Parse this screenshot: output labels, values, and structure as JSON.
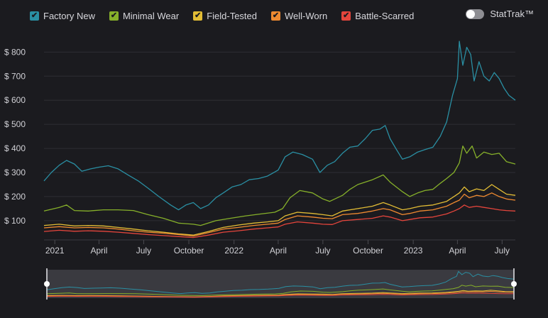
{
  "legend": {
    "items": [
      {
        "label": "Factory New",
        "color": "#2a8fa3"
      },
      {
        "label": "Minimal Wear",
        "color": "#86b02a"
      },
      {
        "label": "Field-Tested",
        "color": "#e3bd35"
      },
      {
        "label": "Well-Worn",
        "color": "#ef8a30"
      },
      {
        "label": "Battle-Scarred",
        "color": "#e5453c"
      }
    ]
  },
  "stattrak": {
    "label": "StatTrak™",
    "enabled": false
  },
  "chart_data": {
    "type": "line",
    "ylabel_prefix": "$",
    "ylim": [
      20,
      860
    ],
    "yticks": [
      100,
      200,
      300,
      400,
      500,
      600,
      700,
      800
    ],
    "ytick_labels": [
      "$ 100",
      "$ 200",
      "$ 300",
      "$ 400",
      "$ 500",
      "$ 600",
      "$ 700",
      "$ 800"
    ],
    "xlim": [
      "2020-12-10",
      "2023-07-28"
    ],
    "xticks": [
      {
        "label": "2021",
        "date": "2021-01-01"
      },
      {
        "label": "April",
        "date": "2021-04-01"
      },
      {
        "label": "July",
        "date": "2021-07-01"
      },
      {
        "label": "October",
        "date": "2021-10-01"
      },
      {
        "label": "2022",
        "date": "2022-01-01"
      },
      {
        "label": "April",
        "date": "2022-04-01"
      },
      {
        "label": "July",
        "date": "2022-07-01"
      },
      {
        "label": "October",
        "date": "2022-10-01"
      },
      {
        "label": "2023",
        "date": "2023-01-01"
      },
      {
        "label": "April",
        "date": "2023-04-01"
      },
      {
        "label": "July",
        "date": "2023-07-01"
      }
    ],
    "grid": true,
    "legend_position": "top-left",
    "series": [
      {
        "name": "Factory New",
        "color": "#2a8fa3",
        "points": [
          [
            "2020-12-10",
            265
          ],
          [
            "2020-12-25",
            300
          ],
          [
            "2021-01-10",
            330
          ],
          [
            "2021-01-25",
            350
          ],
          [
            "2021-02-10",
            335
          ],
          [
            "2021-02-25",
            305
          ],
          [
            "2021-03-15",
            315
          ],
          [
            "2021-04-01",
            322
          ],
          [
            "2021-04-20",
            328
          ],
          [
            "2021-05-10",
            315
          ],
          [
            "2021-05-30",
            290
          ],
          [
            "2021-06-20",
            265
          ],
          [
            "2021-07-10",
            235
          ],
          [
            "2021-08-01",
            200
          ],
          [
            "2021-08-25",
            165
          ],
          [
            "2021-09-10",
            145
          ],
          [
            "2021-09-25",
            165
          ],
          [
            "2021-10-10",
            175
          ],
          [
            "2021-10-25",
            150
          ],
          [
            "2021-11-10",
            165
          ],
          [
            "2021-11-25",
            195
          ],
          [
            "2021-12-10",
            215
          ],
          [
            "2021-12-28",
            240
          ],
          [
            "2022-01-15",
            250
          ],
          [
            "2022-02-01",
            270
          ],
          [
            "2022-02-20",
            275
          ],
          [
            "2022-03-10",
            285
          ],
          [
            "2022-04-01",
            310
          ],
          [
            "2022-04-15",
            365
          ],
          [
            "2022-05-01",
            385
          ],
          [
            "2022-05-20",
            375
          ],
          [
            "2022-06-10",
            355
          ],
          [
            "2022-06-25",
            300
          ],
          [
            "2022-07-10",
            330
          ],
          [
            "2022-07-25",
            345
          ],
          [
            "2022-08-10",
            380
          ],
          [
            "2022-08-25",
            405
          ],
          [
            "2022-09-10",
            410
          ],
          [
            "2022-09-25",
            440
          ],
          [
            "2022-10-10",
            475
          ],
          [
            "2022-10-25",
            480
          ],
          [
            "2022-11-05",
            495
          ],
          [
            "2022-11-15",
            440
          ],
          [
            "2022-11-28",
            395
          ],
          [
            "2022-12-10",
            355
          ],
          [
            "2022-12-25",
            365
          ],
          [
            "2023-01-10",
            385
          ],
          [
            "2023-01-25",
            395
          ],
          [
            "2023-02-10",
            405
          ],
          [
            "2023-02-25",
            450
          ],
          [
            "2023-03-10",
            510
          ],
          [
            "2023-03-22",
            620
          ],
          [
            "2023-04-01",
            690
          ],
          [
            "2023-04-05",
            845
          ],
          [
            "2023-04-12",
            745
          ],
          [
            "2023-04-20",
            820
          ],
          [
            "2023-04-28",
            790
          ],
          [
            "2023-05-05",
            680
          ],
          [
            "2023-05-15",
            760
          ],
          [
            "2023-05-25",
            700
          ],
          [
            "2023-06-05",
            680
          ],
          [
            "2023-06-15",
            715
          ],
          [
            "2023-06-25",
            690
          ],
          [
            "2023-07-05",
            650
          ],
          [
            "2023-07-15",
            620
          ],
          [
            "2023-07-28",
            600
          ]
        ]
      },
      {
        "name": "Minimal Wear",
        "color": "#86b02a",
        "points": [
          [
            "2020-12-10",
            140
          ],
          [
            "2021-01-10",
            155
          ],
          [
            "2021-01-25",
            165
          ],
          [
            "2021-02-10",
            142
          ],
          [
            "2021-03-10",
            140
          ],
          [
            "2021-04-10",
            145
          ],
          [
            "2021-05-10",
            145
          ],
          [
            "2021-06-10",
            142
          ],
          [
            "2021-07-10",
            125
          ],
          [
            "2021-08-10",
            110
          ],
          [
            "2021-09-10",
            90
          ],
          [
            "2021-10-10",
            85
          ],
          [
            "2021-10-25",
            80
          ],
          [
            "2021-11-25",
            100
          ],
          [
            "2021-12-25",
            110
          ],
          [
            "2022-01-25",
            120
          ],
          [
            "2022-02-25",
            128
          ],
          [
            "2022-03-25",
            135
          ],
          [
            "2022-04-10",
            150
          ],
          [
            "2022-04-25",
            195
          ],
          [
            "2022-05-15",
            225
          ],
          [
            "2022-06-10",
            215
          ],
          [
            "2022-07-01",
            190
          ],
          [
            "2022-07-15",
            180
          ],
          [
            "2022-08-10",
            205
          ],
          [
            "2022-08-25",
            230
          ],
          [
            "2022-09-10",
            250
          ],
          [
            "2022-10-10",
            270
          ],
          [
            "2022-11-01",
            290
          ],
          [
            "2022-11-15",
            260
          ],
          [
            "2022-12-10",
            220
          ],
          [
            "2022-12-25",
            200
          ],
          [
            "2023-01-10",
            215
          ],
          [
            "2023-01-25",
            225
          ],
          [
            "2023-02-10",
            230
          ],
          [
            "2023-02-25",
            255
          ],
          [
            "2023-03-10",
            275
          ],
          [
            "2023-03-25",
            300
          ],
          [
            "2023-04-05",
            340
          ],
          [
            "2023-04-12",
            410
          ],
          [
            "2023-04-20",
            380
          ],
          [
            "2023-05-01",
            410
          ],
          [
            "2023-05-10",
            360
          ],
          [
            "2023-05-25",
            385
          ],
          [
            "2023-06-10",
            375
          ],
          [
            "2023-06-25",
            380
          ],
          [
            "2023-07-10",
            345
          ],
          [
            "2023-07-28",
            335
          ]
        ]
      },
      {
        "name": "Field-Tested",
        "color": "#e3bd35",
        "points": [
          [
            "2020-12-10",
            80
          ],
          [
            "2021-01-10",
            85
          ],
          [
            "2021-02-10",
            78
          ],
          [
            "2021-03-10",
            80
          ],
          [
            "2021-04-10",
            78
          ],
          [
            "2021-05-10",
            72
          ],
          [
            "2021-06-10",
            65
          ],
          [
            "2021-07-10",
            58
          ],
          [
            "2021-08-10",
            52
          ],
          [
            "2021-09-10",
            45
          ],
          [
            "2021-10-10",
            40
          ],
          [
            "2021-11-10",
            55
          ],
          [
            "2021-12-10",
            72
          ],
          [
            "2022-01-10",
            82
          ],
          [
            "2022-02-10",
            90
          ],
          [
            "2022-03-10",
            95
          ],
          [
            "2022-04-01",
            100
          ],
          [
            "2022-04-15",
            120
          ],
          [
            "2022-05-10",
            135
          ],
          [
            "2022-06-10",
            130
          ],
          [
            "2022-07-01",
            125
          ],
          [
            "2022-07-20",
            120
          ],
          [
            "2022-08-10",
            140
          ],
          [
            "2022-09-10",
            150
          ],
          [
            "2022-10-10",
            160
          ],
          [
            "2022-11-01",
            175
          ],
          [
            "2022-11-15",
            165
          ],
          [
            "2022-12-10",
            145
          ],
          [
            "2022-12-25",
            150
          ],
          [
            "2023-01-15",
            160
          ],
          [
            "2023-02-10",
            165
          ],
          [
            "2023-03-10",
            180
          ],
          [
            "2023-03-25",
            200
          ],
          [
            "2023-04-05",
            215
          ],
          [
            "2023-04-15",
            240
          ],
          [
            "2023-04-25",
            220
          ],
          [
            "2023-05-10",
            232
          ],
          [
            "2023-05-25",
            225
          ],
          [
            "2023-06-10",
            250
          ],
          [
            "2023-06-25",
            230
          ],
          [
            "2023-07-10",
            210
          ],
          [
            "2023-07-28",
            205
          ]
        ]
      },
      {
        "name": "Well-Worn",
        "color": "#ef8a30",
        "points": [
          [
            "2020-12-10",
            70
          ],
          [
            "2021-01-10",
            75
          ],
          [
            "2021-02-10",
            70
          ],
          [
            "2021-03-10",
            72
          ],
          [
            "2021-04-10",
            70
          ],
          [
            "2021-05-10",
            65
          ],
          [
            "2021-06-10",
            58
          ],
          [
            "2021-07-10",
            52
          ],
          [
            "2021-08-10",
            48
          ],
          [
            "2021-09-10",
            42
          ],
          [
            "2021-10-10",
            36
          ],
          [
            "2021-11-10",
            50
          ],
          [
            "2021-12-10",
            65
          ],
          [
            "2022-01-10",
            72
          ],
          [
            "2022-02-10",
            80
          ],
          [
            "2022-03-10",
            85
          ],
          [
            "2022-04-01",
            90
          ],
          [
            "2022-04-15",
            105
          ],
          [
            "2022-05-10",
            120
          ],
          [
            "2022-06-10",
            115
          ],
          [
            "2022-07-01",
            110
          ],
          [
            "2022-07-20",
            108
          ],
          [
            "2022-08-10",
            125
          ],
          [
            "2022-09-10",
            130
          ],
          [
            "2022-10-10",
            140
          ],
          [
            "2022-11-01",
            150
          ],
          [
            "2022-11-15",
            145
          ],
          [
            "2022-12-10",
            125
          ],
          [
            "2022-12-25",
            130
          ],
          [
            "2023-01-15",
            140
          ],
          [
            "2023-02-10",
            145
          ],
          [
            "2023-03-10",
            160
          ],
          [
            "2023-03-25",
            175
          ],
          [
            "2023-04-05",
            185
          ],
          [
            "2023-04-15",
            210
          ],
          [
            "2023-04-25",
            195
          ],
          [
            "2023-05-10",
            205
          ],
          [
            "2023-05-25",
            200
          ],
          [
            "2023-06-10",
            215
          ],
          [
            "2023-06-25",
            200
          ],
          [
            "2023-07-10",
            190
          ],
          [
            "2023-07-28",
            185
          ]
        ]
      },
      {
        "name": "Battle-Scarred",
        "color": "#e5453c",
        "points": [
          [
            "2020-12-10",
            55
          ],
          [
            "2021-01-10",
            60
          ],
          [
            "2021-02-10",
            56
          ],
          [
            "2021-03-10",
            58
          ],
          [
            "2021-04-10",
            56
          ],
          [
            "2021-05-10",
            52
          ],
          [
            "2021-06-10",
            47
          ],
          [
            "2021-07-10",
            42
          ],
          [
            "2021-08-10",
            38
          ],
          [
            "2021-09-10",
            34
          ],
          [
            "2021-10-10",
            30
          ],
          [
            "2021-11-10",
            40
          ],
          [
            "2021-12-10",
            52
          ],
          [
            "2022-01-10",
            58
          ],
          [
            "2022-02-10",
            65
          ],
          [
            "2022-03-10",
            70
          ],
          [
            "2022-04-01",
            74
          ],
          [
            "2022-04-15",
            85
          ],
          [
            "2022-05-10",
            95
          ],
          [
            "2022-06-10",
            90
          ],
          [
            "2022-07-01",
            85
          ],
          [
            "2022-07-20",
            84
          ],
          [
            "2022-08-10",
            100
          ],
          [
            "2022-09-10",
            105
          ],
          [
            "2022-10-10",
            110
          ],
          [
            "2022-11-01",
            120
          ],
          [
            "2022-11-15",
            115
          ],
          [
            "2022-12-10",
            100
          ],
          [
            "2022-12-25",
            105
          ],
          [
            "2023-01-15",
            112
          ],
          [
            "2023-02-10",
            115
          ],
          [
            "2023-03-10",
            128
          ],
          [
            "2023-03-25",
            140
          ],
          [
            "2023-04-05",
            150
          ],
          [
            "2023-04-15",
            165
          ],
          [
            "2023-04-25",
            155
          ],
          [
            "2023-05-10",
            160
          ],
          [
            "2023-05-25",
            155
          ],
          [
            "2023-06-10",
            150
          ],
          [
            "2023-06-25",
            145
          ],
          [
            "2023-07-10",
            142
          ],
          [
            "2023-07-28",
            140
          ]
        ]
      }
    ]
  }
}
